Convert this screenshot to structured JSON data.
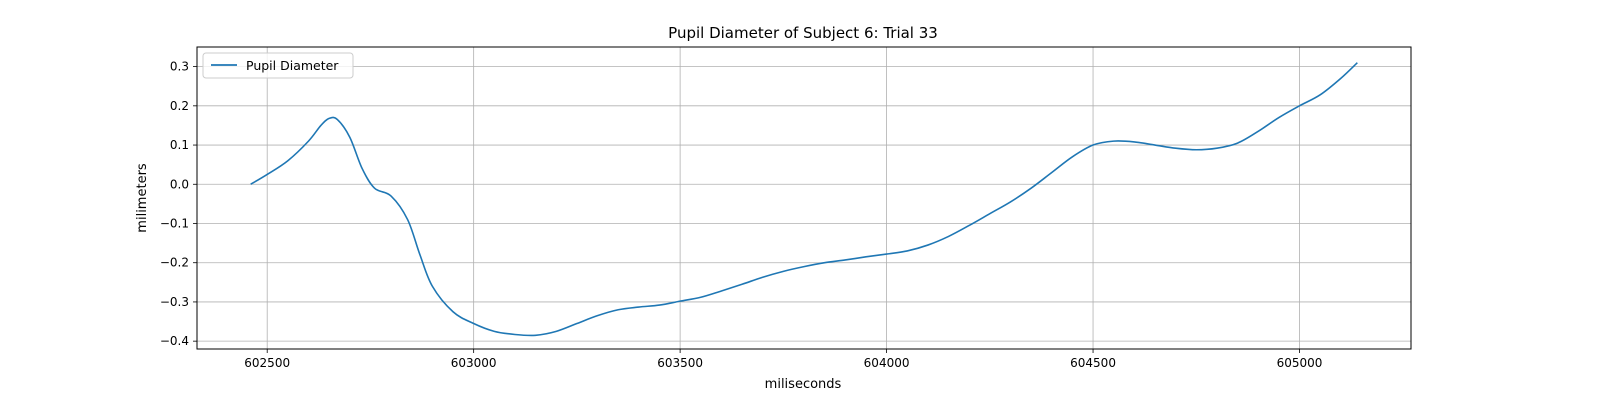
{
  "chart_data": {
    "type": "line",
    "title": "Pupil Diameter of Subject 6: Trial 33",
    "xlabel": "miliseconds",
    "ylabel": "milimeters",
    "xlim": [
      602330,
      605270
    ],
    "ylim": [
      -0.42,
      0.35
    ],
    "xticks": [
      602500,
      603000,
      603500,
      604000,
      604500,
      605000
    ],
    "yticks": [
      0.3,
      0.2,
      0.1,
      0.0,
      -0.1,
      -0.2,
      -0.3,
      -0.4
    ],
    "xtick_labels": [
      "602500",
      "603000",
      "603500",
      "604000",
      "604500",
      "605000"
    ],
    "ytick_labels": [
      "0.3",
      "0.2",
      "0.1",
      "0.0",
      "−0.1",
      "−0.2",
      "−0.3",
      "−0.4"
    ],
    "grid": true,
    "legend_position": "top-left",
    "series": [
      {
        "name": "Pupil Diameter",
        "color": "#1f77b4",
        "x": [
          602460,
          602500,
          602550,
          602600,
          602630,
          602650,
          602670,
          602700,
          602730,
          602760,
          602800,
          602840,
          602870,
          602900,
          602950,
          603000,
          603050,
          603100,
          603150,
          603200,
          603250,
          603300,
          603350,
          603400,
          603450,
          603500,
          603550,
          603600,
          603650,
          603700,
          603750,
          603800,
          603850,
          603900,
          603950,
          604000,
          604050,
          604100,
          604150,
          604200,
          604250,
          604300,
          604350,
          604400,
          604450,
          604500,
          604550,
          604600,
          604650,
          604700,
          604750,
          604800,
          604850,
          604900,
          604950,
          605000,
          605050,
          605100,
          605140
        ],
        "values": [
          0.0,
          0.025,
          0.06,
          0.11,
          0.15,
          0.168,
          0.165,
          0.12,
          0.04,
          -0.01,
          -0.03,
          -0.09,
          -0.18,
          -0.26,
          -0.325,
          -0.355,
          -0.375,
          -0.383,
          -0.385,
          -0.375,
          -0.355,
          -0.335,
          -0.32,
          -0.313,
          -0.308,
          -0.298,
          -0.288,
          -0.272,
          -0.255,
          -0.237,
          -0.222,
          -0.21,
          -0.2,
          -0.193,
          -0.185,
          -0.178,
          -0.17,
          -0.155,
          -0.133,
          -0.105,
          -0.075,
          -0.045,
          -0.01,
          0.03,
          0.07,
          0.1,
          0.11,
          0.108,
          0.1,
          0.092,
          0.088,
          0.092,
          0.105,
          0.135,
          0.17,
          0.2,
          0.228,
          0.27,
          0.31
        ]
      }
    ]
  }
}
